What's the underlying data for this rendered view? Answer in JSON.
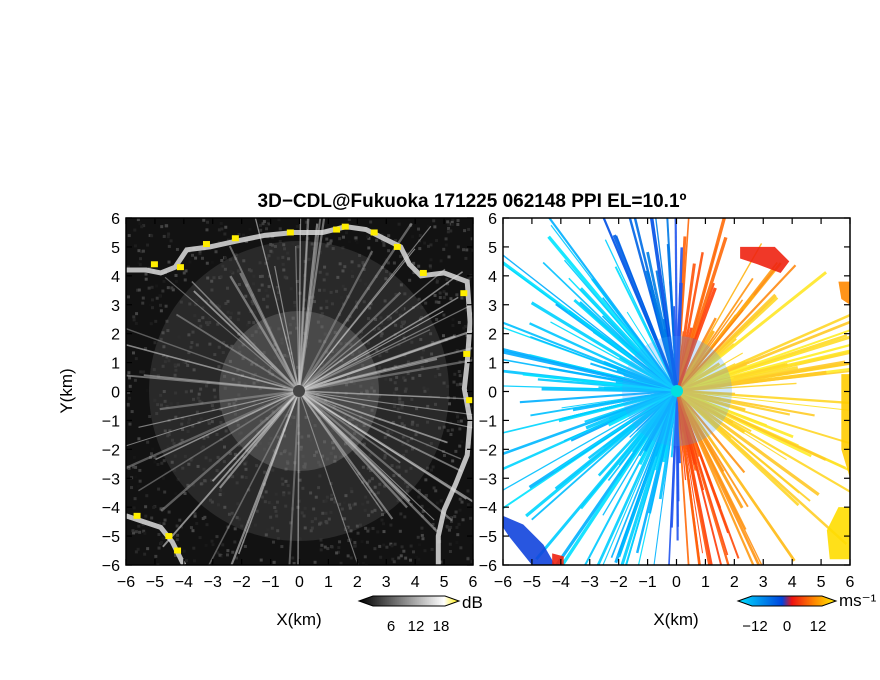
{
  "chart_data": {
    "title": "3D−CDL@Fukuoka 171225 062148 PPI EL=10.1º",
    "panels": [
      {
        "name": "reflectivity",
        "type": "heatmap",
        "xlabel": "X(km)",
        "ylabel": "Y(km)",
        "xlim": [
          -6,
          6
        ],
        "ylim": [
          -6,
          6
        ],
        "x_ticks": [
          "−6",
          "−5",
          "−4",
          "−3",
          "−2",
          "−1",
          "0",
          "1",
          "2",
          "3",
          "4",
          "5",
          "6"
        ],
        "y_ticks": [
          "6",
          "5",
          "4",
          "3",
          "2",
          "1",
          "0",
          "−1",
          "−2",
          "−3",
          "−4",
          "−5",
          "−6"
        ],
        "colorbar": {
          "unit": "dB",
          "ticks": [
            "6",
            "12",
            "18"
          ],
          "range": [
            0,
            24
          ],
          "colors": [
            "#000000",
            "#ffffff",
            "#ffee00"
          ]
        }
      },
      {
        "name": "doppler_velocity",
        "type": "heatmap",
        "xlabel": "X(km)",
        "xlim": [
          -6,
          6
        ],
        "ylim": [
          -6,
          6
        ],
        "x_ticks": [
          "−6",
          "−5",
          "−4",
          "−3",
          "−2",
          "−1",
          "0",
          "1",
          "2",
          "3",
          "4",
          "5",
          "6"
        ],
        "y_ticks": [
          "6",
          "5",
          "4",
          "3",
          "2",
          "1",
          "0",
          "−1",
          "−2",
          "−3",
          "−4",
          "−5",
          "−6"
        ],
        "colorbar": {
          "unit": "ms⁻¹",
          "ticks": [
            "−12",
            "0",
            "12"
          ],
          "range": [
            -18,
            18
          ],
          "colors": [
            "#00e0ff",
            "#0044dd",
            "#ee1111",
            "#ffee00"
          ]
        }
      }
    ]
  }
}
